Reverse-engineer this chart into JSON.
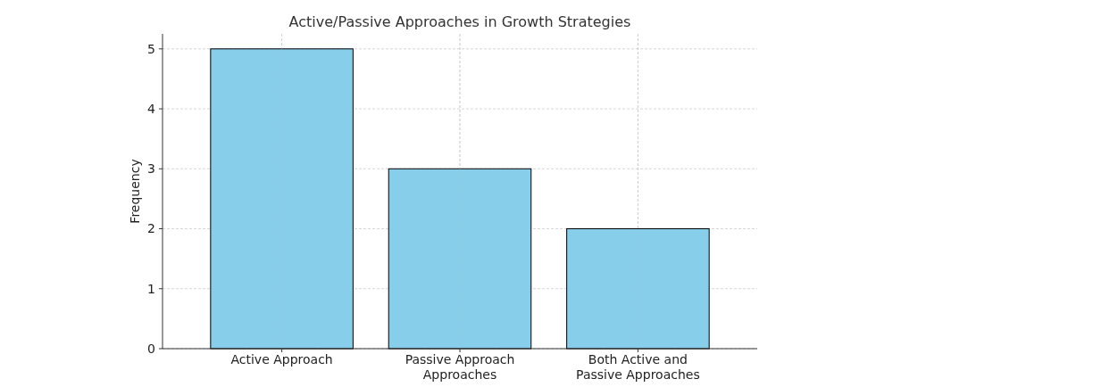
{
  "chart_data": {
    "type": "bar",
    "title": "Active/Passive Approaches in Growth Strategies",
    "ylabel": "Frequency",
    "categories": [
      "Active Approach",
      "Passive Approach\nApproaches",
      "Both Active and Passive Approaches"
    ],
    "values": [
      5,
      3,
      2
    ],
    "color": "#87ceeb",
    "ylim": [
      0,
      5.25
    ],
    "yticks": [
      0,
      1,
      2,
      3,
      4,
      5
    ],
    "grid": true
  }
}
